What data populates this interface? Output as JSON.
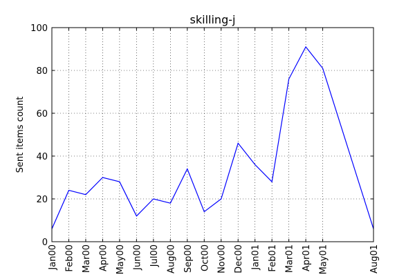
{
  "chart_data": {
    "type": "line",
    "title": "skilling-j",
    "xlabel": "",
    "ylabel": "Sent items count",
    "x": [
      "2000-01",
      "2000-02",
      "2000-03",
      "2000-04",
      "2000-05",
      "2000-06",
      "2000-07",
      "2000-08",
      "2000-09",
      "2000-10",
      "2000-11",
      "2000-12",
      "2001-01",
      "2001-02",
      "2001-03",
      "2001-04",
      "2001-05",
      "2001-08"
    ],
    "x_tick_labels": [
      "Jan00",
      "Feb00",
      "Mar00",
      "Apr00",
      "May00",
      "Jun00",
      "Jul00",
      "Aug00",
      "Sep00",
      "Oct00",
      "Nov00",
      "Dec00",
      "Jan01",
      "Feb01",
      "Mar01",
      "Apr01",
      "May01",
      "Aug01"
    ],
    "series": [
      {
        "values": [
          6,
          24,
          22,
          30,
          28,
          12,
          20,
          18,
          34,
          14,
          20,
          46,
          36,
          28,
          76,
          91,
          81,
          6
        ]
      }
    ],
    "ylim": [
      0,
      100
    ],
    "y_ticks": [
      0,
      20,
      40,
      60,
      80,
      100
    ],
    "grid": true,
    "line_color": "#0000ff"
  }
}
